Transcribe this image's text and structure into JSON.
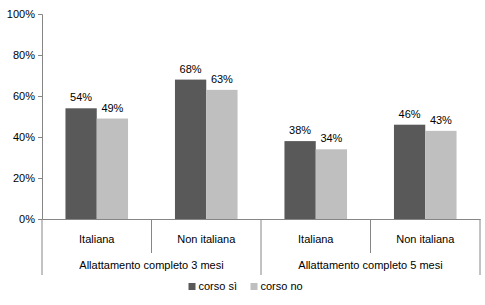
{
  "chart_data": {
    "type": "bar",
    "categories": [
      "Italiana",
      "Non italiana",
      "Italiana",
      "Non italiana"
    ],
    "category_groups": [
      "Allattamento completo 3 mesi",
      "Allattamento completo 5 mesi"
    ],
    "series": [
      {
        "name": "corso sì",
        "color": "#595959",
        "values": [
          54,
          68,
          38,
          46
        ],
        "value_labels": [
          "54%",
          "68%",
          "38%",
          "46%"
        ]
      },
      {
        "name": "corso no",
        "color": "#bfbfbf",
        "values": [
          49,
          63,
          34,
          43
        ],
        "value_labels": [
          "49%",
          "63%",
          "34%",
          "43%"
        ]
      }
    ],
    "ylim": [
      0,
      100
    ],
    "yticks": [
      {
        "value": 0,
        "label": "0%"
      },
      {
        "value": 20,
        "label": "20%"
      },
      {
        "value": 40,
        "label": "40%"
      },
      {
        "value": 60,
        "label": "60%"
      },
      {
        "value": 80,
        "label": "80%"
      },
      {
        "value": 100,
        "label": "100%"
      }
    ],
    "grid": false,
    "data_labels": true,
    "legend": "bottom"
  }
}
